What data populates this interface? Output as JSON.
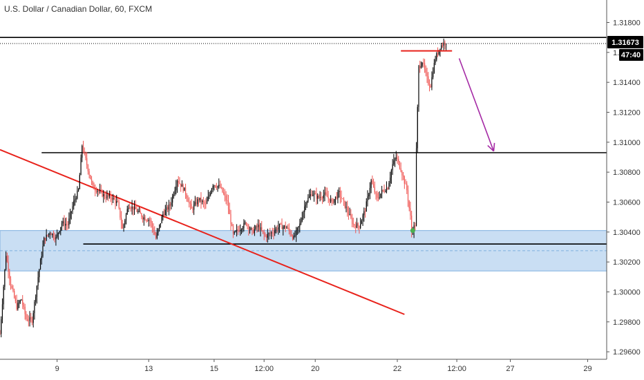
{
  "chart_data": {
    "type": "candlestick",
    "title": "U.S. Dollar / Canadian Dollar, 60, FXCM",
    "ylim": [
      1.2955,
      1.3195
    ],
    "x_range_hours": [
      0,
      510
    ],
    "y_ticks": [
      "1.31800",
      "1.31600",
      "1.31400",
      "1.31200",
      "1.31000",
      "1.30800",
      "1.30600",
      "1.30400",
      "1.30200",
      "1.30000",
      "1.29800",
      "1.29600"
    ],
    "x_ticks": [
      {
        "label": "9",
        "hour": 48
      },
      {
        "label": "13",
        "hour": 125
      },
      {
        "label": "15",
        "hour": 180
      },
      {
        "label": "12:00",
        "hour": 222
      },
      {
        "label": "20",
        "hour": 265
      },
      {
        "label": "22",
        "hour": 334
      },
      {
        "label": "12:00",
        "hour": 384
      },
      {
        "label": "27",
        "hour": 429
      },
      {
        "label": "29",
        "hour": 494
      }
    ],
    "last_price": "1.31673",
    "countdown": "47:40",
    "colors": {
      "up": "#000000",
      "down": "#ef5350",
      "trendline": "#e8221b",
      "arrow": "#a52aa5",
      "zone": "#bbd6f0"
    },
    "price_path": [
      {
        "h": 0,
        "p": 1.2972
      },
      {
        "h": 5,
        "p": 1.3025
      },
      {
        "h": 9,
        "p": 1.3005
      },
      {
        "h": 14,
        "p": 1.299
      },
      {
        "h": 18,
        "p": 1.2995
      },
      {
        "h": 22,
        "p": 1.2982
      },
      {
        "h": 27,
        "p": 1.2981
      },
      {
        "h": 32,
        "p": 1.301
      },
      {
        "h": 37,
        "p": 1.3035
      },
      {
        "h": 42,
        "p": 1.304
      },
      {
        "h": 47,
        "p": 1.3036
      },
      {
        "h": 52,
        "p": 1.3046
      },
      {
        "h": 57,
        "p": 1.3045
      },
      {
        "h": 62,
        "p": 1.306
      },
      {
        "h": 66,
        "p": 1.3068
      },
      {
        "h": 69,
        "p": 1.3098
      },
      {
        "h": 73,
        "p": 1.3085
      },
      {
        "h": 78,
        "p": 1.307
      },
      {
        "h": 82,
        "p": 1.3068
      },
      {
        "h": 88,
        "p": 1.3064
      },
      {
        "h": 94,
        "p": 1.3063
      },
      {
        "h": 99,
        "p": 1.3059
      },
      {
        "h": 103,
        "p": 1.3042
      },
      {
        "h": 108,
        "p": 1.3058
      },
      {
        "h": 114,
        "p": 1.3055
      },
      {
        "h": 120,
        "p": 1.305
      },
      {
        "h": 126,
        "p": 1.3048
      },
      {
        "h": 131,
        "p": 1.3036
      },
      {
        "h": 137,
        "p": 1.3052
      },
      {
        "h": 143,
        "p": 1.3058
      },
      {
        "h": 149,
        "p": 1.3075
      },
      {
        "h": 155,
        "p": 1.3068
      },
      {
        "h": 161,
        "p": 1.3055
      },
      {
        "h": 167,
        "p": 1.3062
      },
      {
        "h": 173,
        "p": 1.3058
      },
      {
        "h": 179,
        "p": 1.3072
      },
      {
        "h": 185,
        "p": 1.307
      },
      {
        "h": 191,
        "p": 1.306
      },
      {
        "h": 196,
        "p": 1.3038
      },
      {
        "h": 201,
        "p": 1.3042
      },
      {
        "h": 207,
        "p": 1.3046
      },
      {
        "h": 212,
        "p": 1.304
      },
      {
        "h": 217,
        "p": 1.3044
      },
      {
        "h": 223,
        "p": 1.3037
      },
      {
        "h": 229,
        "p": 1.304
      },
      {
        "h": 235,
        "p": 1.3044
      },
      {
        "h": 241,
        "p": 1.3043
      },
      {
        "h": 247,
        "p": 1.3036
      },
      {
        "h": 252,
        "p": 1.3045
      },
      {
        "h": 257,
        "p": 1.306
      },
      {
        "h": 262,
        "p": 1.3066
      },
      {
        "h": 267,
        "p": 1.3063
      },
      {
        "h": 273,
        "p": 1.3065
      },
      {
        "h": 279,
        "p": 1.306
      },
      {
        "h": 285,
        "p": 1.3066
      },
      {
        "h": 291,
        "p": 1.3056
      },
      {
        "h": 297,
        "p": 1.3045
      },
      {
        "h": 302,
        "p": 1.3044
      },
      {
        "h": 307,
        "p": 1.3055
      },
      {
        "h": 312,
        "p": 1.3074
      },
      {
        "h": 317,
        "p": 1.3062
      },
      {
        "h": 321,
        "p": 1.3067
      },
      {
        "h": 326,
        "p": 1.307
      },
      {
        "h": 330,
        "p": 1.3085
      },
      {
        "h": 333,
        "p": 1.309
      },
      {
        "h": 337,
        "p": 1.3082
      },
      {
        "h": 342,
        "p": 1.3068
      },
      {
        "h": 345,
        "p": 1.305
      },
      {
        "h": 346,
        "p": 1.304
      },
      {
        "h": 349,
        "p": 1.3045
      },
      {
        "h": 350,
        "p": 1.3095
      },
      {
        "h": 352,
        "p": 1.315
      },
      {
        "h": 355,
        "p": 1.3154
      },
      {
        "h": 358,
        "p": 1.3145
      },
      {
        "h": 360,
        "p": 1.314
      },
      {
        "h": 362,
        "p": 1.3138
      },
      {
        "h": 364,
        "p": 1.3148
      },
      {
        "h": 366,
        "p": 1.3156
      },
      {
        "h": 368,
        "p": 1.316
      },
      {
        "h": 370,
        "p": 1.3164
      },
      {
        "h": 373,
        "p": 1.3166
      },
      {
        "h": 375,
        "p": 1.31673
      }
    ],
    "annotations": {
      "resistance_top": {
        "price": 1.317,
        "h_start": 0,
        "h_end": 510
      },
      "resistance_1": {
        "price": 1.3093,
        "h_start": 35,
        "h_end": 510
      },
      "support_1": {
        "price": 1.3032,
        "h_start": 70,
        "h_end": 510
      },
      "support_zone": {
        "price_low": 1.3014,
        "price_high": 1.3041,
        "mid": 1.30275
      },
      "red_short_line": {
        "price": 1.3161,
        "h_start": 337,
        "h_end": 380
      },
      "descending_trendline": {
        "h_start": 0,
        "p_start": 1.3095,
        "h_end": 340,
        "p_end": 1.2985
      },
      "projection_arrow": {
        "h_start": 386,
        "p_start": 1.3156,
        "h_end": 415,
        "p_end": 1.3094
      },
      "green_dot": {
        "h": 347,
        "p": 1.3041
      }
    }
  }
}
